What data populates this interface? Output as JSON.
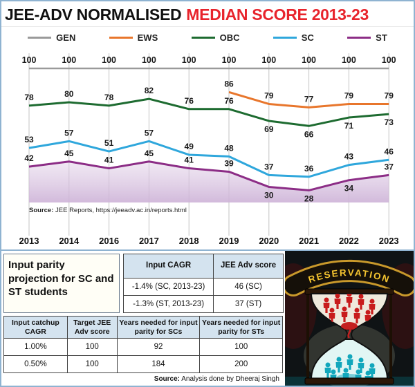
{
  "title": {
    "black": "JEE-ADV NORMALISED",
    "red": "MEDIAN SCORE 2013-23",
    "red_color": "#e8242c"
  },
  "legend": [
    {
      "label": "GEN",
      "color": "#9a9a9a"
    },
    {
      "label": "EWS",
      "color": "#e8762c"
    },
    {
      "label": "OBC",
      "color": "#1d6b30"
    },
    {
      "label": "SC",
      "color": "#2fa7dc"
    },
    {
      "label": "ST",
      "color": "#8c2d86"
    }
  ],
  "chart_data": {
    "type": "line",
    "title": "JEE-ADV NORMALISED MEDIAN SCORE 2013-23",
    "x": [
      2013,
      2014,
      2016,
      2017,
      2018,
      2019,
      2020,
      2021,
      2022,
      2023
    ],
    "series": [
      {
        "name": "GEN",
        "color": "#9a9a9a",
        "values": [
          100,
          100,
          100,
          100,
          100,
          100,
          100,
          100,
          100,
          100
        ]
      },
      {
        "name": "EWS",
        "color": "#e8762c",
        "values": [
          null,
          null,
          null,
          null,
          null,
          86,
          79,
          77,
          79,
          79
        ]
      },
      {
        "name": "OBC",
        "color": "#1d6b30",
        "values": [
          78,
          80,
          78,
          82,
          76,
          76,
          69,
          66,
          71,
          73
        ]
      },
      {
        "name": "SC",
        "color": "#2fa7dc",
        "values": [
          53,
          57,
          51,
          57,
          49,
          48,
          37,
          36,
          43,
          46
        ]
      },
      {
        "name": "ST",
        "color": "#8c2d86",
        "values": [
          42,
          45,
          41,
          45,
          41,
          39,
          30,
          28,
          34,
          37
        ],
        "area": true
      }
    ],
    "ylim": [
      25,
      104
    ],
    "grid": "vertical",
    "legend_position": "top",
    "source_label": "Source:",
    "source_text": " JEE Reports, https://jeeadv.ac.in/reports.html"
  },
  "bottom": {
    "heading": "Input parity projection for SC and ST students",
    "cagr_table": {
      "headers": [
        "Input CAGR",
        "JEE Adv score"
      ],
      "rows": [
        [
          "-1.4% (SC, 2013-23)",
          "46 (SC)"
        ],
        [
          "-1.3% (ST, 2013-23)",
          "37 (ST)"
        ]
      ]
    },
    "parity_table": {
      "headers": [
        "Input catchup CAGR",
        "Target JEE Adv score",
        "Years needed for input parity for SCs",
        "Years needed for input parity for STs"
      ],
      "rows": [
        [
          "1.00%",
          "100",
          "92",
          "100"
        ],
        [
          "0.50%",
          "100",
          "184",
          "200"
        ]
      ]
    },
    "source": {
      "label": "Source:",
      "text": " Analysis done by Dheeraj Singh"
    }
  },
  "illustration": {
    "banner": "RESERVATION"
  }
}
